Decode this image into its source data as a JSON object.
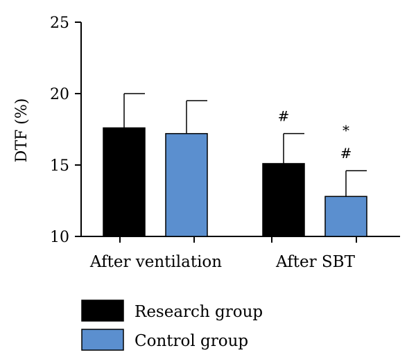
{
  "chart_data": {
    "type": "bar",
    "categories": [
      "After ventilation",
      "After SBT"
    ],
    "series": [
      {
        "name": "Research group",
        "values": [
          17.6,
          15.1
        ],
        "errors": [
          2.4,
          2.1
        ],
        "color": "#000000",
        "annotations": [
          "",
          "#"
        ]
      },
      {
        "name": "Control group",
        "values": [
          17.2,
          12.8
        ],
        "errors": [
          2.3,
          1.8
        ],
        "color": "#5b8fcf",
        "annotations": [
          "",
          "*\n#"
        ]
      }
    ],
    "title": "",
    "xlabel": "",
    "ylabel": "DTF (%)",
    "ylim": [
      10,
      25
    ],
    "yticks": [
      10,
      15,
      20,
      25
    ],
    "legend_position": "bottom-left",
    "grid": false
  }
}
